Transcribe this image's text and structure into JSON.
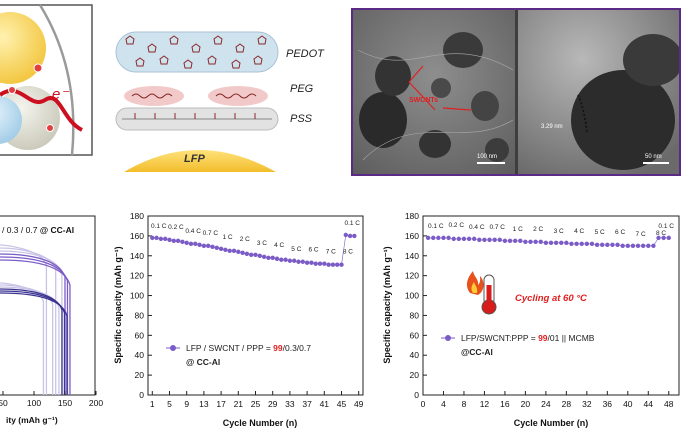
{
  "schematic": {
    "electron_label": "e⁻",
    "layers": [
      "PEDOT",
      "PEG",
      "PSS"
    ],
    "substrate_label": "LFP"
  },
  "tem": {
    "annotation_left": "SWCNTs",
    "scale_left": "100 nm",
    "annotation_right": "3.29 nm",
    "scale_right": "50 nm"
  },
  "colors": {
    "series_marker": "#7b5cc7",
    "highlight": "#e02020",
    "frame": "#5a2a86"
  },
  "chart_data": [
    {
      "type": "line",
      "panel": "left",
      "title": "/ 0.3 / 0.7 @ CC-Al",
      "title_parts": [
        "/ 0.3 / 0.7 ",
        "@ CC-Al"
      ],
      "xlabel": "ity (mAh g⁻¹)",
      "xticks": [
        "50",
        "100",
        "150",
        "200"
      ],
      "xlim": [
        0,
        200
      ]
    },
    {
      "type": "scatter",
      "panel": "middle",
      "xlabel": "Cycle Number (n)",
      "ylabel": "Specific capacity (mAh g⁻¹)",
      "xlim": [
        0,
        50
      ],
      "ylim": [
        0,
        180
      ],
      "xticks": [
        "1",
        "5",
        "9",
        "13",
        "17",
        "21",
        "25",
        "29",
        "33",
        "37",
        "41",
        "45",
        "49"
      ],
      "yticks": [
        "0",
        "20",
        "40",
        "60",
        "80",
        "100",
        "120",
        "140",
        "160",
        "180"
      ],
      "rate_labels": [
        "0.1 C",
        "0.2 C",
        "0.4 C",
        "0.7 C",
        "1 C",
        "2 C",
        "3 C",
        "4 C",
        "5 C",
        "6 C",
        "7 C",
        "8 C",
        "0.1 C"
      ],
      "series": [
        {
          "name": "LFP / SWCNT / PPP = 99/0.3/0.7 @ CC-Al",
          "legend_parts": [
            "LFP / SWCNT / PPP = ",
            "99",
            "/0.3/0.7"
          ],
          "legend_line2": "@ CC-Al",
          "x": [
            1,
            2,
            3,
            4,
            5,
            6,
            7,
            8,
            9,
            10,
            11,
            12,
            13,
            14,
            15,
            16,
            17,
            18,
            19,
            20,
            21,
            22,
            23,
            24,
            25,
            26,
            27,
            28,
            29,
            30,
            31,
            32,
            33,
            34,
            35,
            36,
            37,
            38,
            39,
            40,
            41,
            42,
            43,
            44,
            45,
            46,
            47,
            48
          ],
          "y": [
            158,
            158,
            157,
            157,
            156,
            155,
            155,
            154,
            153,
            152,
            152,
            151,
            150,
            150,
            149,
            148,
            147,
            146,
            145,
            145,
            144,
            143,
            142,
            141,
            141,
            140,
            139,
            138,
            138,
            137,
            136,
            136,
            135,
            135,
            134,
            134,
            133,
            133,
            132,
            132,
            132,
            131,
            131,
            131,
            131,
            161,
            160,
            160
          ]
        }
      ]
    },
    {
      "type": "scatter",
      "panel": "right",
      "xlabel": "Cycle Number (n)",
      "ylabel": "Specific capacity (mAh g⁻¹)",
      "xlim": [
        0,
        50
      ],
      "ylim": [
        0,
        180
      ],
      "xticks": [
        "0",
        "4",
        "8",
        "12",
        "16",
        "20",
        "24",
        "28",
        "32",
        "36",
        "40",
        "44",
        "48"
      ],
      "yticks": [
        "0",
        "20",
        "40",
        "60",
        "80",
        "100",
        "120",
        "140",
        "160",
        "180"
      ],
      "rate_labels": [
        "0.1 C",
        "0.2 C",
        "0.4 C",
        "0.7 C",
        "1 C",
        "2 C",
        "3 C",
        "4 C",
        "5 C",
        "6 C",
        "7 C",
        "8 C",
        "0.1 C"
      ],
      "annotation": "Cycling at 60 °C",
      "series": [
        {
          "name": "LFP/SWCNT:PPP = 99/01 || MCMB @CC-Al",
          "legend_parts": [
            "LFP/SWCNT:PPP = ",
            "99",
            "/01 || MCMB"
          ],
          "legend_line2": "@CC-Al",
          "x": [
            1,
            2,
            3,
            4,
            5,
            6,
            7,
            8,
            9,
            10,
            11,
            12,
            13,
            14,
            15,
            16,
            17,
            18,
            19,
            20,
            21,
            22,
            23,
            24,
            25,
            26,
            27,
            28,
            29,
            30,
            31,
            32,
            33,
            34,
            35,
            36,
            37,
            38,
            39,
            40,
            41,
            42,
            43,
            44,
            45,
            46,
            47,
            48
          ],
          "y": [
            158,
            158,
            158,
            158,
            158,
            157,
            157,
            157,
            157,
            157,
            156,
            156,
            156,
            156,
            156,
            155,
            155,
            155,
            155,
            154,
            154,
            154,
            154,
            153,
            153,
            153,
            153,
            153,
            152,
            152,
            152,
            152,
            152,
            151,
            151,
            151,
            151,
            151,
            150,
            150,
            150,
            150,
            150,
            150,
            150,
            158,
            158,
            158
          ]
        }
      ]
    }
  ]
}
